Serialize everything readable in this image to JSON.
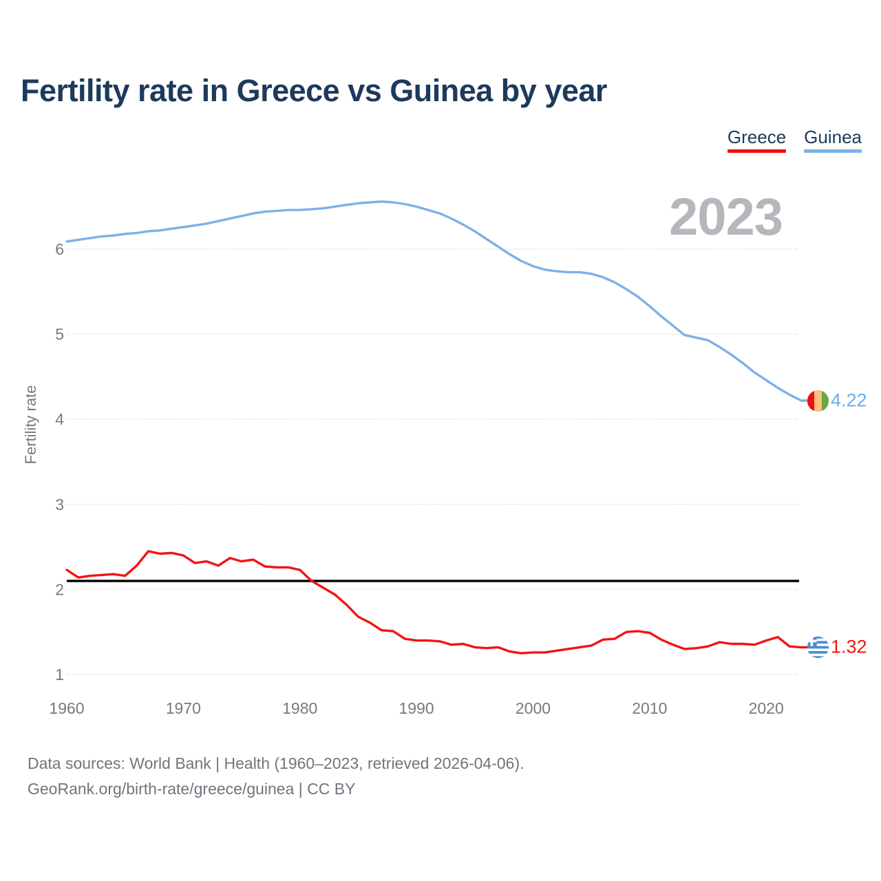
{
  "header": {
    "title": "Fertility rate in Greece vs Guinea by year"
  },
  "legend": {
    "items": [
      {
        "label": "Greece",
        "color": "#f90d0d"
      },
      {
        "label": "Guinea",
        "color": "#7cb1e8"
      }
    ]
  },
  "chart_data": {
    "type": "line",
    "title": "Fertility rate in Greece vs Guinea by year",
    "xlabel": "",
    "ylabel": "Fertility rate",
    "watermark": "2023",
    "x_ticks": [
      1960,
      1970,
      1980,
      1990,
      2000,
      2010,
      2020
    ],
    "y_ticks": [
      1,
      2,
      3,
      4,
      5,
      6
    ],
    "x_range": [
      1960,
      2023
    ],
    "y_axis_ticks_range": [
      1,
      6
    ],
    "grid": true,
    "legend_position": "top-right",
    "reference_line": {
      "value": 2.1,
      "color": "#000000"
    },
    "years_start": 1960,
    "series": [
      {
        "name": "Greece",
        "color": "#f31313",
        "label_color": "#f31313",
        "end_label": "1.32",
        "end_value": 1.32,
        "values": [
          2.23,
          2.14,
          2.16,
          2.17,
          2.18,
          2.16,
          2.28,
          2.45,
          2.42,
          2.43,
          2.4,
          2.31,
          2.33,
          2.28,
          2.37,
          2.33,
          2.35,
          2.27,
          2.26,
          2.26,
          2.23,
          2.1,
          2.02,
          1.94,
          1.82,
          1.68,
          1.61,
          1.52,
          1.51,
          1.42,
          1.4,
          1.4,
          1.39,
          1.35,
          1.36,
          1.32,
          1.31,
          1.32,
          1.27,
          1.25,
          1.26,
          1.26,
          1.28,
          1.3,
          1.32,
          1.34,
          1.41,
          1.42,
          1.5,
          1.51,
          1.49,
          1.41,
          1.35,
          1.3,
          1.31,
          1.33,
          1.38,
          1.36,
          1.36,
          1.35,
          1.4,
          1.44,
          1.33,
          1.32
        ]
      },
      {
        "name": "Guinea",
        "color": "#7cb1e8",
        "label_color": "#6fabe8",
        "end_label": "4.22",
        "end_value": 4.22,
        "values": [
          6.09,
          6.11,
          6.13,
          6.15,
          6.16,
          6.18,
          6.19,
          6.21,
          6.22,
          6.24,
          6.26,
          6.28,
          6.3,
          6.33,
          6.36,
          6.39,
          6.42,
          6.44,
          6.45,
          6.46,
          6.46,
          6.47,
          6.48,
          6.5,
          6.52,
          6.54,
          6.55,
          6.56,
          6.55,
          6.53,
          6.5,
          6.46,
          6.42,
          6.36,
          6.29,
          6.21,
          6.12,
          6.03,
          5.94,
          5.86,
          5.8,
          5.76,
          5.74,
          5.73,
          5.73,
          5.71,
          5.67,
          5.61,
          5.53,
          5.44,
          5.33,
          5.21,
          5.1,
          4.99,
          4.96,
          4.93,
          4.85,
          4.76,
          4.66,
          4.55,
          4.46,
          4.37,
          4.29,
          4.22
        ]
      }
    ]
  },
  "footer": {
    "line1": "Data sources: World Bank | Health (1960–2023, retrieved 2026-04-06).",
    "line2": "GeoRank.org/birth-rate/greece/guinea | CC BY"
  }
}
